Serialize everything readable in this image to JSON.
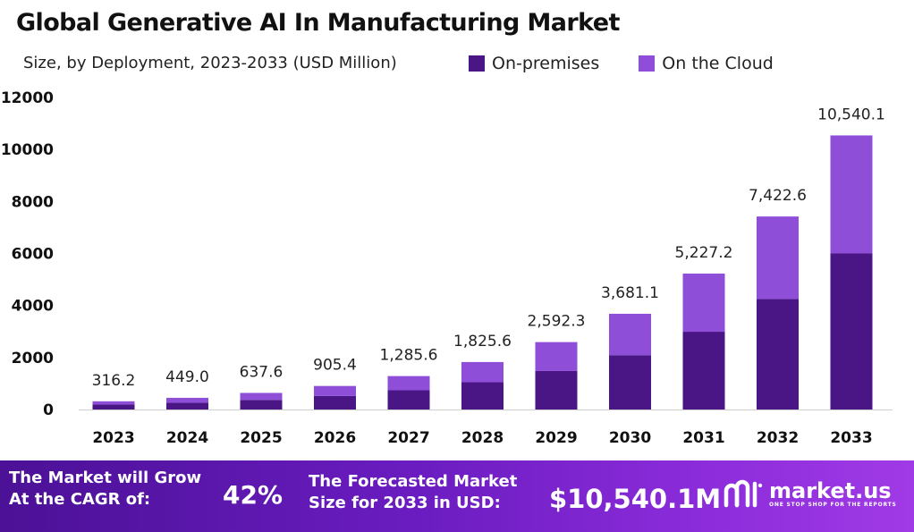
{
  "chart_data": {
    "type": "bar",
    "stacked": true,
    "title": "Global Generative AI In Manufacturing Market",
    "subtitle": "Size, by Deployment, 2023-2033 (USD Million)",
    "categories": [
      "2023",
      "2024",
      "2025",
      "2026",
      "2027",
      "2028",
      "2029",
      "2030",
      "2031",
      "2032",
      "2033"
    ],
    "series": [
      {
        "name": "On-premises",
        "color": "#4a1686",
        "values": [
          190,
          260,
          370,
          520,
          740,
          1050,
          1480,
          2090,
          2990,
          4250,
          6000
        ]
      },
      {
        "name": "On the Cloud",
        "color": "#8f4ed8",
        "values": [
          126.2,
          189.0,
          267.6,
          385.4,
          545.6,
          775.6,
          1112.3,
          1591.1,
          2237.2,
          3172.6,
          4540.1
        ]
      }
    ],
    "total_labels": [
      "316.2",
      "449.0",
      "637.6",
      "905.4",
      "1,285.6",
      "1,825.6",
      "2,592.3",
      "3,681.1",
      "5,227.2",
      "7,422.6",
      "10,540.1"
    ],
    "y_ticks": [
      "0",
      "2000",
      "4000",
      "6000",
      "8000",
      "10000",
      "12000"
    ],
    "ylim": [
      0,
      12000
    ],
    "grid": false,
    "legend_position": "top"
  },
  "footer": {
    "cagr_label_line1": "The Market will Grow",
    "cagr_label_line2": "At the CAGR of:",
    "cagr_value": "42%",
    "forecast_label_line1": "The Forecasted Market",
    "forecast_label_line2": "Size for 2033 in USD:",
    "forecast_value": "$10,540.1M",
    "brand_name": "market.us",
    "brand_tagline": "ONE STOP SHOP FOR THE REPORTS"
  }
}
